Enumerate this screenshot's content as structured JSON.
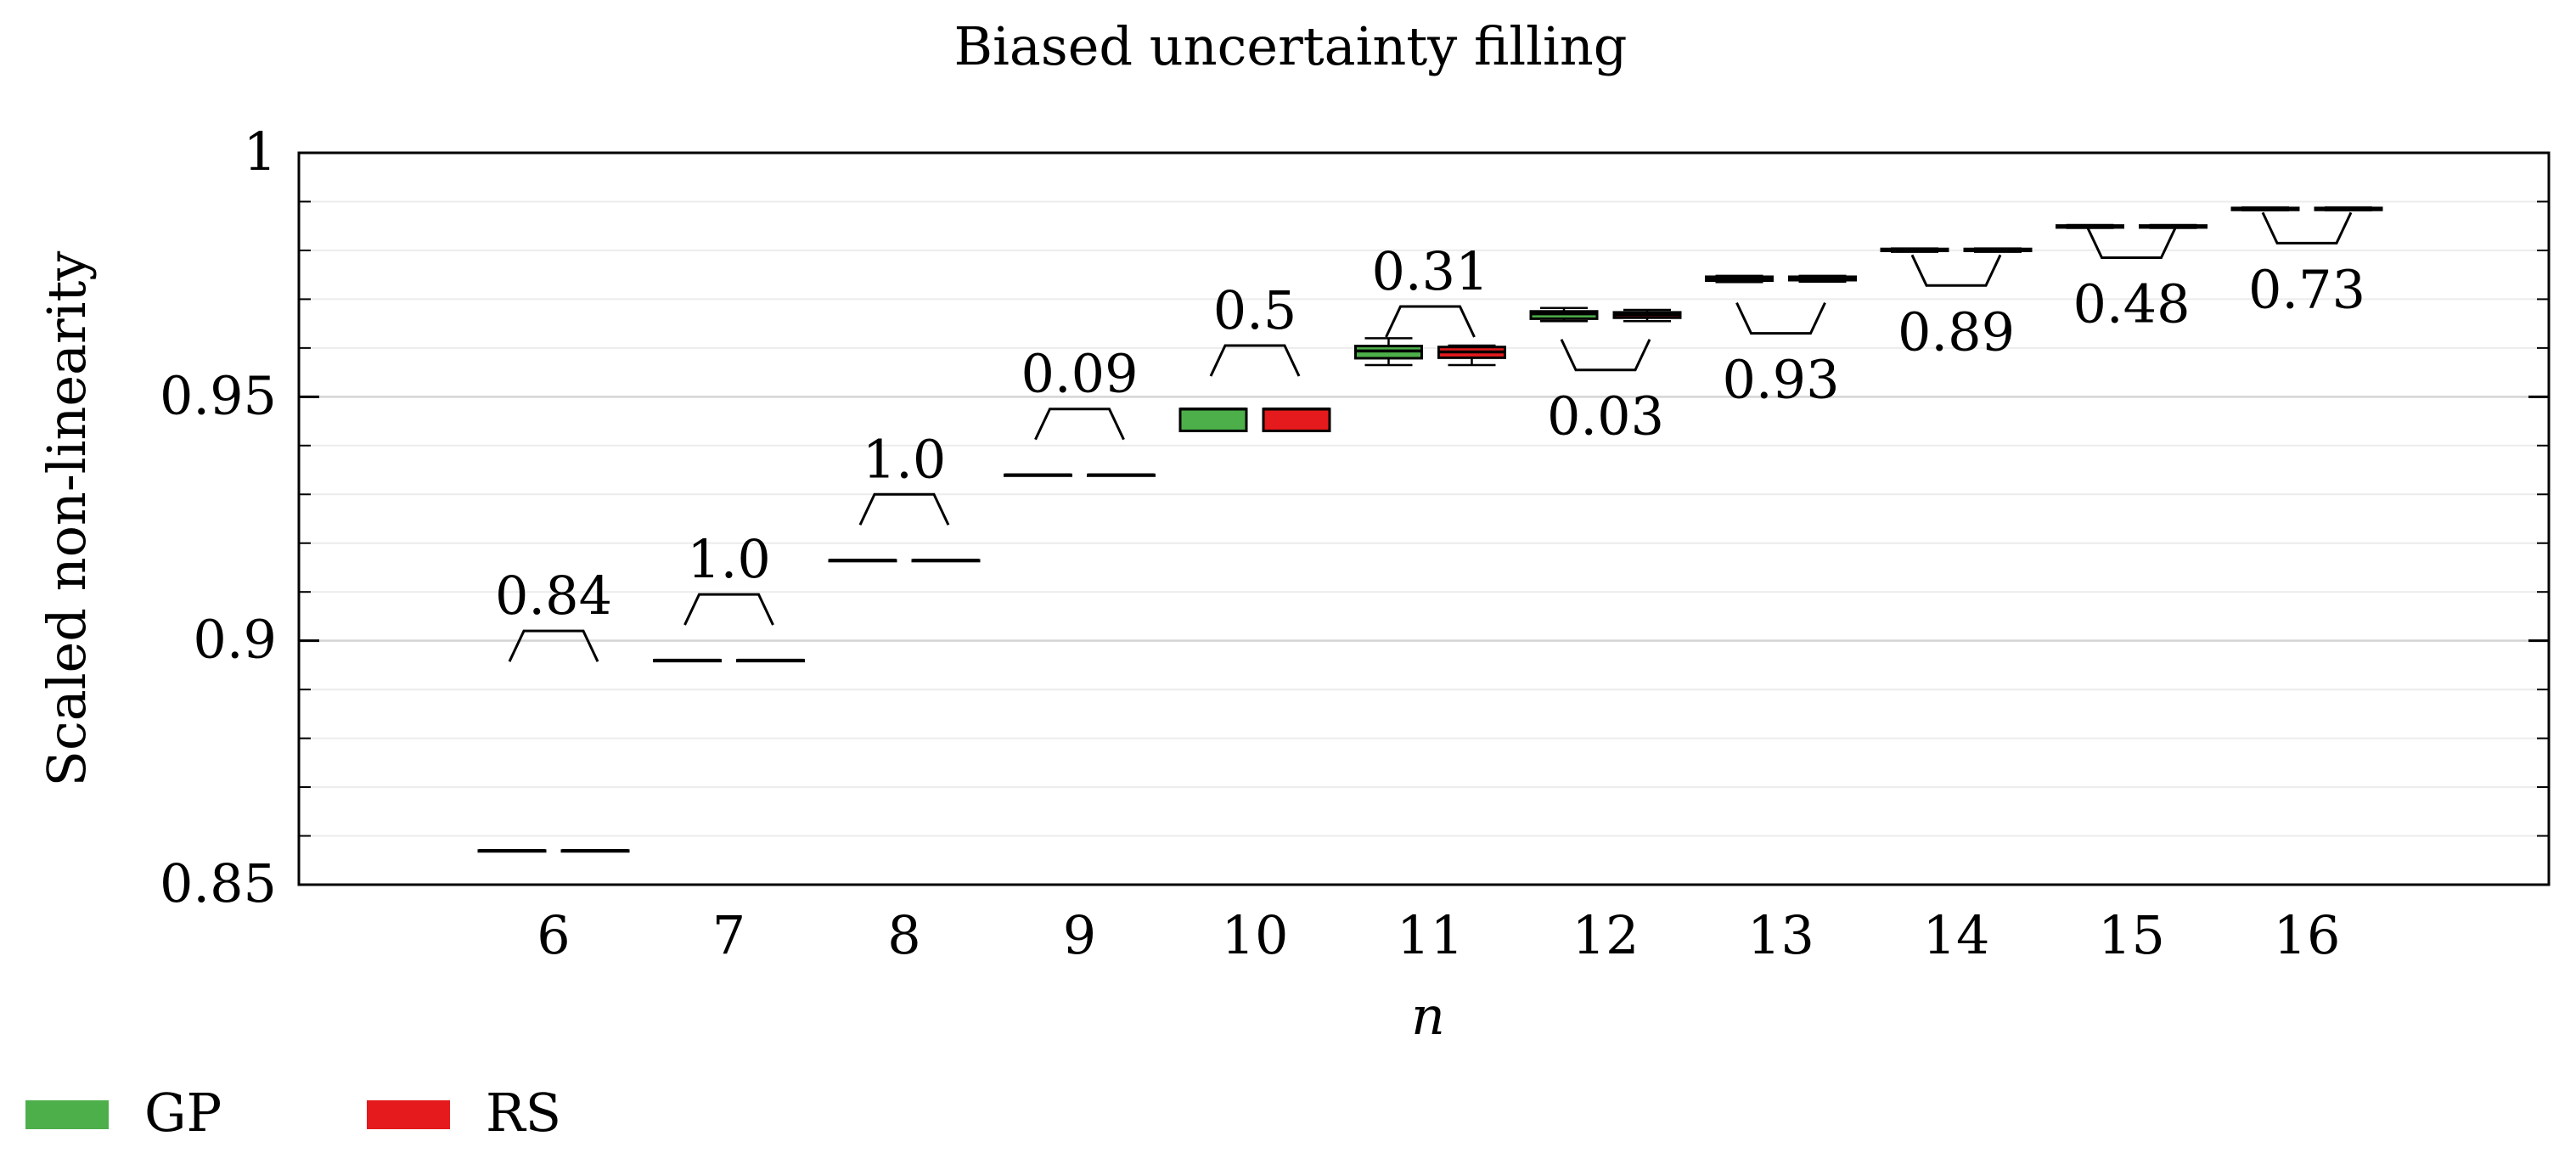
{
  "chart_data": {
    "type": "box",
    "title": "Biased uncertainty filling",
    "xlabel": "n",
    "ylabel": "Scaled non-linearity",
    "ylim": [
      0.85,
      1.0
    ],
    "yticks": [
      0.85,
      0.9,
      0.95,
      1.0
    ],
    "ytick_labels": [
      "0.85",
      "0.9",
      "0.95",
      "1"
    ],
    "categories": [
      "6",
      "7",
      "8",
      "9",
      "10",
      "11",
      "12",
      "13",
      "14",
      "15",
      "16"
    ],
    "grid": true,
    "legend_position": "bottom-left",
    "series": [
      {
        "name": "GP",
        "color": "#4daf4a",
        "boxes": [
          {
            "min": 0.857,
            "q1": 0.857,
            "median": 0.857,
            "q3": 0.857,
            "max": 0.857
          },
          {
            "min": 0.896,
            "q1": 0.896,
            "median": 0.896,
            "q3": 0.896,
            "max": 0.896
          },
          {
            "min": 0.9165,
            "q1": 0.9165,
            "median": 0.9165,
            "q3": 0.9165,
            "max": 0.9165
          },
          {
            "min": 0.934,
            "q1": 0.934,
            "median": 0.934,
            "q3": 0.934,
            "max": 0.934
          },
          {
            "min": 0.943,
            "q1": 0.943,
            "median": 0.9475,
            "q3": 0.9475,
            "max": 0.9475
          },
          {
            "min": 0.9565,
            "q1": 0.9579,
            "median": 0.9594,
            "q3": 0.9604,
            "max": 0.962
          },
          {
            "min": 0.9655,
            "q1": 0.966,
            "median": 0.967,
            "q3": 0.9675,
            "max": 0.9682
          },
          {
            "min": 0.9735,
            "q1": 0.9738,
            "median": 0.9742,
            "q3": 0.9746,
            "max": 0.9748
          },
          {
            "min": 0.9797,
            "q1": 0.9799,
            "median": 0.9801,
            "q3": 0.9803,
            "max": 0.9804
          },
          {
            "min": 0.9846,
            "q1": 0.9847,
            "median": 0.9849,
            "q3": 0.9851,
            "max": 0.9852
          },
          {
            "min": 0.9882,
            "q1": 0.9883,
            "median": 0.9885,
            "q3": 0.9887,
            "max": 0.9888
          }
        ]
      },
      {
        "name": "RS",
        "color": "#e41a1c",
        "boxes": [
          {
            "min": 0.857,
            "q1": 0.857,
            "median": 0.857,
            "q3": 0.857,
            "max": 0.857
          },
          {
            "min": 0.896,
            "q1": 0.896,
            "median": 0.896,
            "q3": 0.896,
            "max": 0.896
          },
          {
            "min": 0.9165,
            "q1": 0.9165,
            "median": 0.9165,
            "q3": 0.9165,
            "max": 0.9165
          },
          {
            "min": 0.934,
            "q1": 0.934,
            "median": 0.934,
            "q3": 0.934,
            "max": 0.934
          },
          {
            "min": 0.943,
            "q1": 0.943,
            "median": 0.9475,
            "q3": 0.9475,
            "max": 0.9475
          },
          {
            "min": 0.9565,
            "q1": 0.958,
            "median": 0.9592,
            "q3": 0.9602,
            "max": 0.9605
          },
          {
            "min": 0.9655,
            "q1": 0.9662,
            "median": 0.9668,
            "q3": 0.9673,
            "max": 0.9678
          },
          {
            "min": 0.9736,
            "q1": 0.9739,
            "median": 0.9742,
            "q3": 0.9746,
            "max": 0.9748
          },
          {
            "min": 0.9797,
            "q1": 0.9799,
            "median": 0.9801,
            "q3": 0.9803,
            "max": 0.9804
          },
          {
            "min": 0.9846,
            "q1": 0.9847,
            "median": 0.9849,
            "q3": 0.9851,
            "max": 0.9852
          },
          {
            "min": 0.9882,
            "q1": 0.9883,
            "median": 0.9885,
            "q3": 0.9887,
            "max": 0.9888
          }
        ]
      }
    ],
    "annotations": [
      {
        "category": "6",
        "label": "0.84",
        "bracket_y": 0.902,
        "direction": "up"
      },
      {
        "category": "7",
        "label": "1.0",
        "bracket_y": 0.9095,
        "direction": "up"
      },
      {
        "category": "8",
        "label": "1.0",
        "bracket_y": 0.93,
        "direction": "up"
      },
      {
        "category": "9",
        "label": "0.09",
        "bracket_y": 0.9475,
        "direction": "up"
      },
      {
        "category": "10",
        "label": "0.5",
        "bracket_y": 0.9605,
        "direction": "up"
      },
      {
        "category": "11",
        "label": "0.31",
        "bracket_y": 0.9685,
        "direction": "up"
      },
      {
        "category": "12",
        "label": "0.03",
        "bracket_y": 0.9555,
        "direction": "down"
      },
      {
        "category": "13",
        "label": "0.93",
        "bracket_y": 0.963,
        "direction": "down"
      },
      {
        "category": "14",
        "label": "0.89",
        "bracket_y": 0.9728,
        "direction": "down"
      },
      {
        "category": "15",
        "label": "0.48",
        "bracket_y": 0.9785,
        "direction": "down"
      },
      {
        "category": "16",
        "label": "0.73",
        "bracket_y": 0.9815,
        "direction": "down"
      }
    ]
  }
}
